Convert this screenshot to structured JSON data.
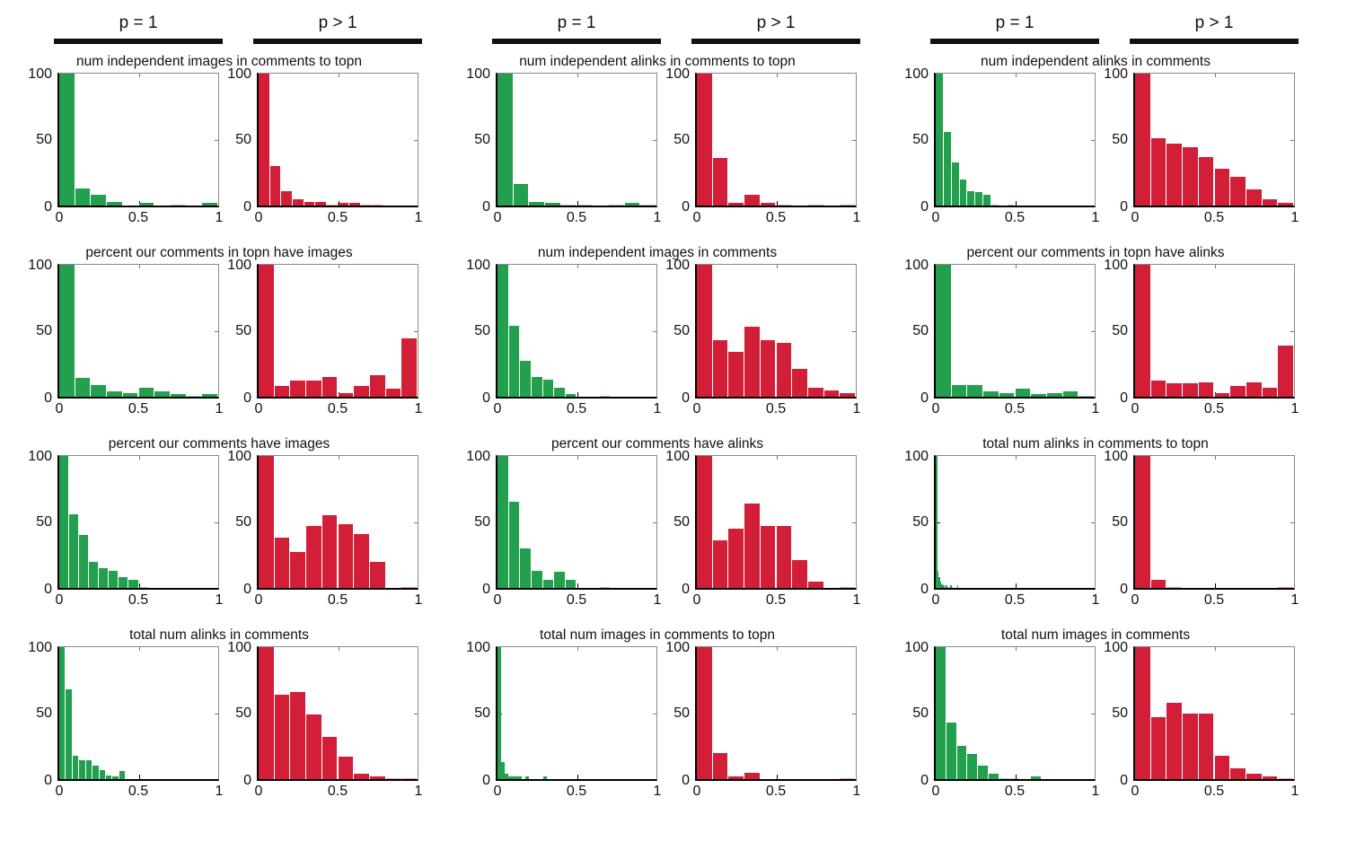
{
  "headers": {
    "p1": "p = 1",
    "pgt1": "p > 1"
  },
  "colors": {
    "p1": "#22a04d",
    "pgt1": "#d21e37",
    "header_bar": "#111111",
    "axis": "#000000",
    "box": "#8a8a8a"
  },
  "axis": {
    "xlim": [
      0,
      1
    ],
    "ylim": [
      0,
      100
    ],
    "x_ticks": [
      "0",
      "0.5",
      "1"
    ],
    "y_ticks": [
      "100",
      "50",
      "0"
    ],
    "grid": false
  },
  "chart_data": [
    {
      "type": "histogram",
      "row": 1,
      "col": 1,
      "title": "num independent images in comments to topn",
      "series": [
        {
          "name": "p = 1",
          "color": "p1",
          "bin_width": 0.1,
          "values": [
            100,
            13,
            8,
            3,
            0,
            2,
            0,
            1,
            0,
            2
          ]
        },
        {
          "name": "p > 1",
          "color": "pgt1",
          "bin_width": 0.0714,
          "values": [
            100,
            30,
            11,
            5,
            3,
            3,
            0.5,
            2,
            2,
            1,
            1,
            0,
            0,
            0
          ]
        }
      ]
    },
    {
      "type": "histogram",
      "row": 1,
      "col": 2,
      "title": "num independent alinks in comments to topn",
      "series": [
        {
          "name": "p = 1",
          "color": "p1",
          "bin_width": 0.1,
          "values": [
            100,
            16,
            3,
            2,
            1,
            1,
            0,
            1,
            2,
            1
          ]
        },
        {
          "name": "p > 1",
          "color": "pgt1",
          "bin_width": 0.1,
          "values": [
            100,
            36,
            2,
            8,
            2,
            1,
            0,
            1,
            0,
            1
          ]
        }
      ]
    },
    {
      "type": "histogram",
      "row": 1,
      "col": 3,
      "title": "num independent alinks in comments",
      "series": [
        {
          "name": "p = 1",
          "color": "p1",
          "bin_width": 0.05,
          "values": [
            100,
            56,
            33,
            20,
            11,
            10,
            8,
            1,
            0,
            1
          ]
        },
        {
          "name": "p > 1",
          "color": "pgt1",
          "bin_width": 0.1,
          "values": [
            100,
            51,
            47,
            44,
            37,
            28,
            22,
            12,
            5,
            2
          ]
        }
      ]
    },
    {
      "type": "histogram",
      "row": 2,
      "col": 1,
      "title": "percent our comments in topn have images",
      "series": [
        {
          "name": "p = 1",
          "color": "p1",
          "bin_width": 0.1,
          "values": [
            100,
            14,
            9,
            4,
            3,
            7,
            4,
            2,
            1,
            2
          ]
        },
        {
          "name": "p > 1",
          "color": "pgt1",
          "bin_width": 0.1,
          "values": [
            100,
            8,
            12,
            12,
            15,
            3,
            8,
            16,
            6,
            44
          ]
        }
      ]
    },
    {
      "type": "histogram",
      "row": 2,
      "col": 2,
      "title": "num independent images in comments",
      "series": [
        {
          "name": "p = 1",
          "color": "p1",
          "bin_width": 0.0714,
          "values": [
            100,
            54,
            27,
            15,
            13,
            7,
            2,
            0,
            0,
            1,
            0,
            0,
            0,
            0
          ]
        },
        {
          "name": "p > 1",
          "color": "pgt1",
          "bin_width": 0.1,
          "values": [
            100,
            43,
            34,
            53,
            43,
            41,
            21,
            7,
            5,
            3
          ]
        }
      ]
    },
    {
      "type": "histogram",
      "row": 2,
      "col": 3,
      "title": "percent our comments in topn have alinks",
      "series": [
        {
          "name": "p = 1",
          "color": "p1",
          "bin_width": 0.1,
          "values": [
            100,
            9,
            9,
            4,
            3,
            6,
            2,
            3,
            4,
            1
          ]
        },
        {
          "name": "p > 1",
          "color": "pgt1",
          "bin_width": 0.1,
          "values": [
            100,
            12,
            10,
            10,
            11,
            3,
            8,
            11,
            7,
            39
          ]
        }
      ]
    },
    {
      "type": "histogram",
      "row": 3,
      "col": 1,
      "title": "percent our comments have images",
      "series": [
        {
          "name": "p = 1",
          "color": "p1",
          "bin_width": 0.0625,
          "values": [
            100,
            56,
            40,
            20,
            15,
            13,
            8,
            6,
            1,
            0,
            0,
            0,
            0,
            0,
            0,
            0
          ]
        },
        {
          "name": "p > 1",
          "color": "pgt1",
          "bin_width": 0.1,
          "values": [
            100,
            38,
            27,
            47,
            55,
            48,
            41,
            20,
            0,
            1
          ]
        }
      ]
    },
    {
      "type": "histogram",
      "row": 3,
      "col": 2,
      "title": "percent our comments have alinks",
      "series": [
        {
          "name": "p = 1",
          "color": "p1",
          "bin_width": 0.0714,
          "values": [
            100,
            65,
            30,
            13,
            6,
            12,
            6,
            0,
            0,
            1,
            0,
            0,
            0,
            0
          ]
        },
        {
          "name": "p > 1",
          "color": "pgt1",
          "bin_width": 0.1,
          "values": [
            100,
            36,
            45,
            64,
            47,
            47,
            21,
            5,
            0,
            1
          ]
        }
      ]
    },
    {
      "type": "histogram",
      "row": 3,
      "col": 3,
      "title": "total num alinks in comments to topn",
      "series": [
        {
          "name": "p = 1",
          "color": "p1",
          "bin_width": 0.009,
          "values": [
            100,
            13,
            8,
            5,
            3,
            2,
            1,
            2,
            1,
            1,
            2,
            1,
            0,
            1,
            0,
            2
          ]
        },
        {
          "name": "p > 1",
          "color": "pgt1",
          "bin_width": 0.1,
          "values": [
            100,
            6,
            1,
            0,
            0,
            0,
            0,
            0,
            0,
            1
          ]
        }
      ]
    },
    {
      "type": "histogram",
      "row": 4,
      "col": 1,
      "title": "total num alinks in comments",
      "series": [
        {
          "name": "p = 1",
          "color": "p1",
          "bin_width": 0.042,
          "values": [
            100,
            68,
            18,
            14,
            14,
            10,
            7,
            3,
            2,
            6
          ]
        },
        {
          "name": "p > 1",
          "color": "pgt1",
          "bin_width": 0.1,
          "values": [
            100,
            64,
            66,
            49,
            32,
            17,
            4,
            2,
            1,
            1
          ]
        }
      ]
    },
    {
      "type": "histogram",
      "row": 4,
      "col": 2,
      "title": "total num images in comments to topn",
      "series": [
        {
          "name": "p = 1",
          "color": "p1",
          "bin_width": 0.022,
          "values": [
            100,
            13,
            4,
            2,
            2,
            2,
            2,
            0,
            2,
            0,
            0,
            0,
            0,
            2
          ]
        },
        {
          "name": "p > 1",
          "color": "pgt1",
          "bin_width": 0.1,
          "values": [
            100,
            20,
            2,
            5,
            0,
            0,
            0,
            0,
            0,
            1
          ]
        }
      ]
    },
    {
      "type": "histogram",
      "row": 4,
      "col": 3,
      "title": "total num images in comments",
      "series": [
        {
          "name": "p = 1",
          "color": "p1",
          "bin_width": 0.0667,
          "values": [
            100,
            43,
            25,
            19,
            10,
            4,
            1,
            1,
            0,
            2,
            0,
            0,
            0,
            0,
            0
          ]
        },
        {
          "name": "p > 1",
          "color": "pgt1",
          "bin_width": 0.1,
          "values": [
            100,
            47,
            58,
            50,
            50,
            18,
            8,
            4,
            2,
            1
          ]
        }
      ]
    }
  ]
}
